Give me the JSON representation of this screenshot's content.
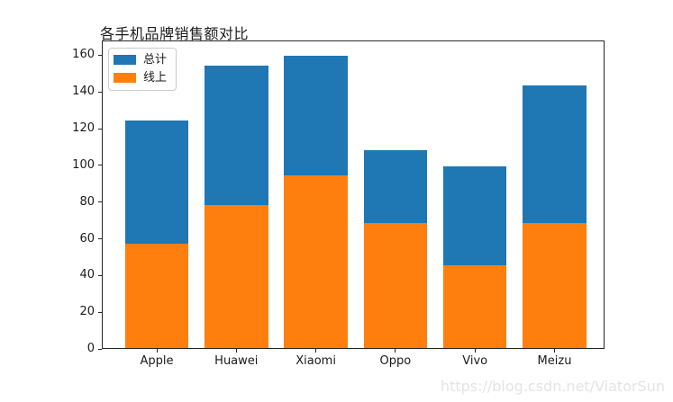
{
  "watermark": "https://blog.csdn.net/ViatorSun",
  "chart_data": {
    "type": "bar",
    "mode": "overlay (线上 bar drawn in front of 总计 bar, shared baseline)",
    "title": "各手机品牌销售额对比",
    "categories": [
      "Apple",
      "Huawei",
      "Xiaomi",
      "Oppo",
      "Vivo",
      "Meizu"
    ],
    "series": [
      {
        "name": "总计",
        "color": "#1f77b4",
        "values": [
          124,
          154,
          159,
          108,
          99,
          143
        ]
      },
      {
        "name": "线上",
        "color": "#ff7f0e",
        "values": [
          57,
          78,
          94,
          68,
          45,
          68
        ]
      }
    ],
    "xlabel": "",
    "ylabel": "",
    "ylim": [
      0,
      167
    ],
    "yticks": [
      0,
      20,
      40,
      60,
      80,
      100,
      120,
      140,
      160
    ],
    "grid": false,
    "legend_position": "upper left",
    "axis_color": "#262626",
    "background_color": "#ffffff",
    "watermark_color": "#e4e4e4"
  }
}
